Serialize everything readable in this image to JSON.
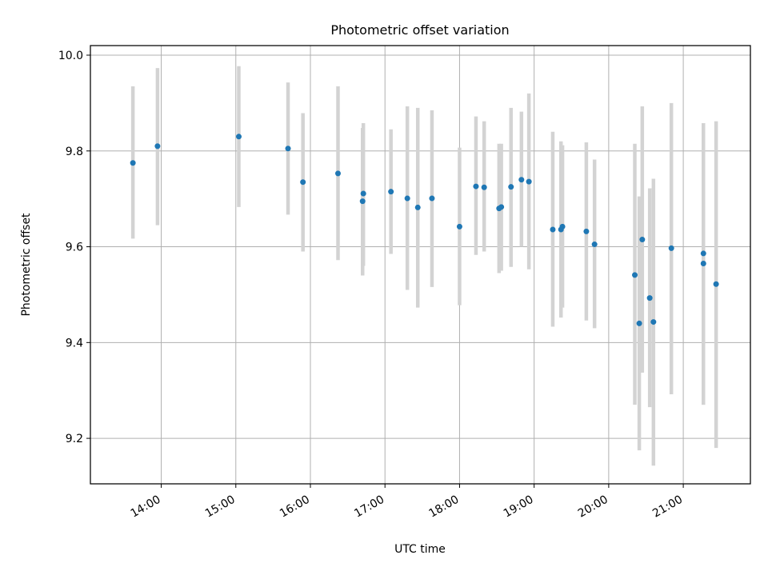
{
  "chart_data": {
    "type": "scatter",
    "title": "Photometric offset variation",
    "xlabel": "UTC time",
    "ylabel": "Photometric offset",
    "x_unit": "hour",
    "xlim": [
      13.05,
      21.9
    ],
    "ylim": [
      9.105,
      10.02
    ],
    "x_ticks": [
      {
        "value": 14,
        "label": "14:00"
      },
      {
        "value": 15,
        "label": "15:00"
      },
      {
        "value": 16,
        "label": "16:00"
      },
      {
        "value": 17,
        "label": "17:00"
      },
      {
        "value": 18,
        "label": "18:00"
      },
      {
        "value": 19,
        "label": "19:00"
      },
      {
        "value": 20,
        "label": "20:00"
      },
      {
        "value": 21,
        "label": "21:00"
      }
    ],
    "y_ticks": [
      {
        "value": 9.2,
        "label": "9.2"
      },
      {
        "value": 9.4,
        "label": "9.4"
      },
      {
        "value": 9.6,
        "label": "9.6"
      },
      {
        "value": 9.8,
        "label": "9.8"
      },
      {
        "value": 10.0,
        "label": "10.0"
      }
    ],
    "grid": true,
    "colors": {
      "points": "#1f77b4",
      "error_bars": "#d3d3d3",
      "grid": "#b0b0b0",
      "axes": "#000000"
    },
    "series": [
      {
        "points": [
          {
            "x": 13.62,
            "y": 9.775,
            "ylow": 9.617,
            "yhigh": 9.935
          },
          {
            "x": 13.95,
            "y": 9.81,
            "ylow": 9.645,
            "yhigh": 9.973
          },
          {
            "x": 15.04,
            "y": 9.83,
            "ylow": 9.683,
            "yhigh": 9.977
          },
          {
            "x": 15.7,
            "y": 9.805,
            "ylow": 9.667,
            "yhigh": 9.943
          },
          {
            "x": 15.9,
            "y": 9.735,
            "ylow": 9.59,
            "yhigh": 9.879
          },
          {
            "x": 16.37,
            "y": 9.753,
            "ylow": 9.572,
            "yhigh": 9.935
          },
          {
            "x": 16.7,
            "y": 9.695,
            "ylow": 9.54,
            "yhigh": 9.848
          },
          {
            "x": 16.71,
            "y": 9.711,
            "ylow": 9.56,
            "yhigh": 9.858
          },
          {
            "x": 17.08,
            "y": 9.715,
            "ylow": 9.585,
            "yhigh": 9.845
          },
          {
            "x": 17.3,
            "y": 9.701,
            "ylow": 9.51,
            "yhigh": 9.893
          },
          {
            "x": 17.44,
            "y": 9.682,
            "ylow": 9.473,
            "yhigh": 9.89
          },
          {
            "x": 17.63,
            "y": 9.701,
            "ylow": 9.516,
            "yhigh": 9.885
          },
          {
            "x": 18.0,
            "y": 9.642,
            "ylow": 9.478,
            "yhigh": 9.807
          },
          {
            "x": 18.22,
            "y": 9.726,
            "ylow": 9.583,
            "yhigh": 9.872
          },
          {
            "x": 18.33,
            "y": 9.724,
            "ylow": 9.59,
            "yhigh": 9.862
          },
          {
            "x": 18.53,
            "y": 9.68,
            "ylow": 9.545,
            "yhigh": 9.815
          },
          {
            "x": 18.56,
            "y": 9.683,
            "ylow": 9.55,
            "yhigh": 9.815
          },
          {
            "x": 18.69,
            "y": 9.725,
            "ylow": 9.558,
            "yhigh": 9.89
          },
          {
            "x": 18.83,
            "y": 9.74,
            "ylow": 9.6,
            "yhigh": 9.882
          },
          {
            "x": 18.93,
            "y": 9.736,
            "ylow": 9.553,
            "yhigh": 9.92
          },
          {
            "x": 19.25,
            "y": 9.636,
            "ylow": 9.433,
            "yhigh": 9.84
          },
          {
            "x": 19.36,
            "y": 9.636,
            "ylow": 9.452,
            "yhigh": 9.82
          },
          {
            "x": 19.38,
            "y": 9.642,
            "ylow": 9.473,
            "yhigh": 9.812
          },
          {
            "x": 19.7,
            "y": 9.632,
            "ylow": 9.446,
            "yhigh": 9.818
          },
          {
            "x": 19.81,
            "y": 9.605,
            "ylow": 9.43,
            "yhigh": 9.782
          },
          {
            "x": 20.35,
            "y": 9.541,
            "ylow": 9.27,
            "yhigh": 9.815
          },
          {
            "x": 20.41,
            "y": 9.44,
            "ylow": 9.175,
            "yhigh": 9.705
          },
          {
            "x": 20.45,
            "y": 9.615,
            "ylow": 9.337,
            "yhigh": 9.893
          },
          {
            "x": 20.55,
            "y": 9.493,
            "ylow": 9.265,
            "yhigh": 9.722
          },
          {
            "x": 20.6,
            "y": 9.443,
            "ylow": 9.143,
            "yhigh": 9.742
          },
          {
            "x": 20.84,
            "y": 9.597,
            "ylow": 9.292,
            "yhigh": 9.9
          },
          {
            "x": 21.27,
            "y": 9.586,
            "ylow": 9.27,
            "yhigh": 9.858
          },
          {
            "x": 21.27,
            "y": 9.565,
            "ylow": 9.27,
            "yhigh": 9.858
          },
          {
            "x": 21.44,
            "y": 9.522,
            "ylow": 9.18,
            "yhigh": 9.862
          }
        ]
      }
    ]
  }
}
